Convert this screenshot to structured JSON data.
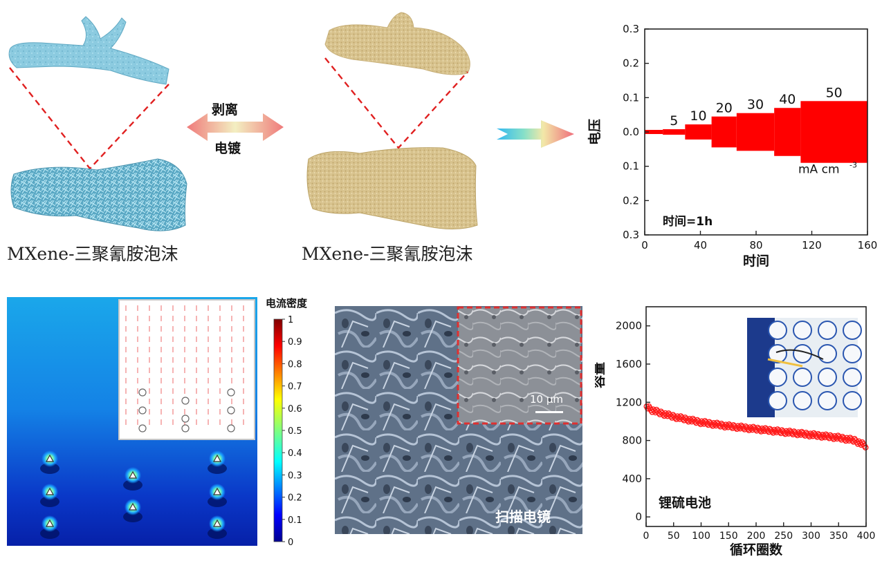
{
  "panel_a": {
    "left_caption": "MXene-三聚氰胺泡沫",
    "right_caption": "MXene-三聚氰胺泡沫",
    "arrow_top_label": "剥离",
    "arrow_bottom_label": "电镀",
    "colors": {
      "foam_blue": "#7fc4dc",
      "foam_gold": "#e2cf9c",
      "dash_red": "#e02020"
    }
  },
  "panel_b": {
    "annotation": "时间=1h",
    "unit_label": "mA cm",
    "unit_sup": "-3",
    "step_labels": [
      "5",
      "10",
      "20",
      "30",
      "40",
      "50"
    ],
    "series_color": "#ff0000"
  },
  "panel_c": {
    "colorbar_title": "电流密度",
    "colorbar_ticks": [
      "1",
      "0.9",
      "0.8",
      "0.7",
      "0.6",
      "0.5",
      "0.4",
      "0.3",
      "0.2",
      "0.1",
      "0"
    ]
  },
  "panel_d": {
    "scale_bar_label": "10 μm",
    "image_label": "扫描电镜"
  },
  "panel_e": {
    "annotation": "锂硫电池",
    "series_color": "#ff1a1a"
  },
  "chart_data": [
    {
      "type": "line",
      "xlabel": "时间",
      "ylabel": "电压",
      "xlim": [
        0,
        160
      ],
      "ylim": [
        -0.3,
        0.3
      ],
      "x_ticks": [
        0,
        40,
        80,
        120,
        160
      ],
      "y_tick_labels": [
        "0.3",
        "0.2",
        "0.1",
        "0.0",
        "0.1",
        "0.2",
        "0.3"
      ],
      "series": [
        {
          "segments": [
            {
              "x": [
                0,
                13
              ],
              "label": "",
              "amplitude": 0.006
            },
            {
              "x": [
                13,
                29
              ],
              "label": "5",
              "amplitude": 0.008
            },
            {
              "x": [
                29,
                48
              ],
              "label": "10",
              "amplitude": 0.022
            },
            {
              "x": [
                48,
                66
              ],
              "label": "20",
              "amplitude": 0.045
            },
            {
              "x": [
                66,
                93
              ],
              "label": "30",
              "amplitude": 0.055
            },
            {
              "x": [
                93,
                112
              ],
              "label": "40",
              "amplitude": 0.07
            },
            {
              "x": [
                112,
                160
              ],
              "label": "50",
              "amplitude": 0.09
            }
          ]
        }
      ]
    },
    {
      "type": "scatter",
      "xlabel": "循环圈数",
      "ylabel": "容量",
      "xlim": [
        0,
        400
      ],
      "ylim": [
        -100,
        2200
      ],
      "x_ticks": [
        0,
        50,
        100,
        150,
        200,
        250,
        300,
        350,
        400
      ],
      "y_ticks": [
        0,
        400,
        800,
        1200,
        1600,
        2000
      ],
      "series": [
        {
          "x": [
            1,
            10,
            25,
            50,
            75,
            100,
            150,
            200,
            250,
            300,
            350,
            380,
            400
          ],
          "y": [
            1160,
            1120,
            1090,
            1050,
            1020,
            990,
            950,
            920,
            890,
            860,
            830,
            800,
            740
          ]
        }
      ]
    }
  ]
}
